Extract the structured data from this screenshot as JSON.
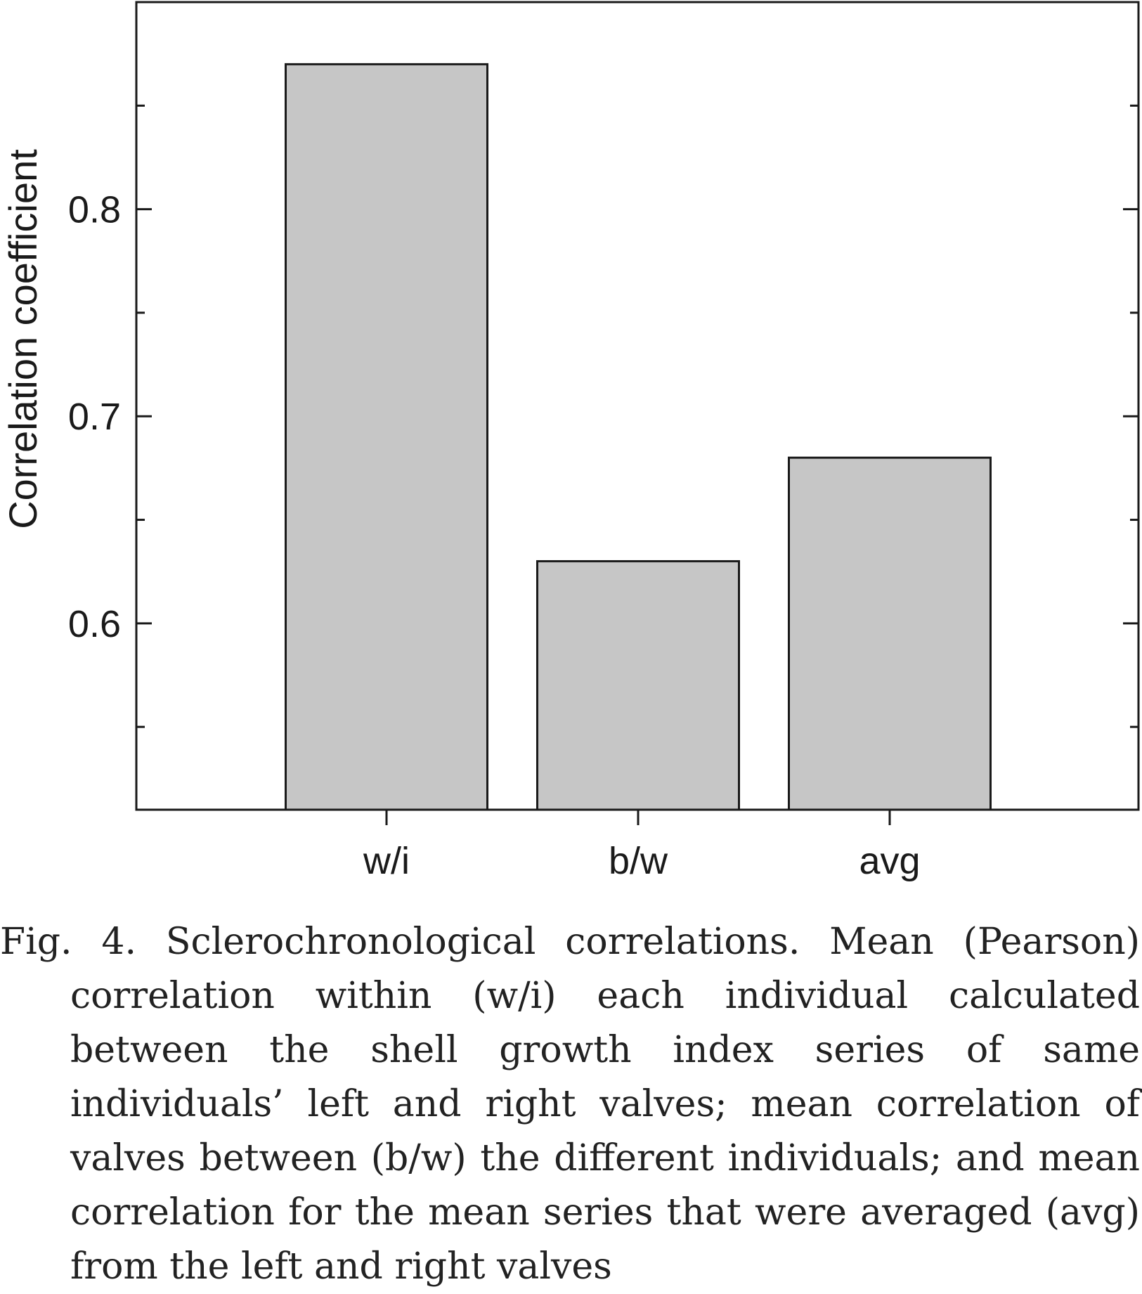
{
  "chart_data": {
    "type": "bar",
    "categories": [
      "w/i",
      "b/w",
      "avg"
    ],
    "values": [
      0.87,
      0.63,
      0.68
    ],
    "ylabel": "Correlation coefficient",
    "xlabel": "",
    "ylim": [
      0.51,
      0.9
    ],
    "yticks_labeled": [
      "0.6",
      "0.7",
      "0.8"
    ],
    "bar_color": "#c6c6c6",
    "grid": false
  },
  "caption": "Fig. 4. Sclerochronological correlations. Mean (Pearson) correlation within (w/i) each individual calculated between the shell growth index series of same individuals’ left and right valves; mean correlation of valves between (b/w) the different individuals; and mean correlation for the mean series that were averaged (avg) from the left and right valves"
}
